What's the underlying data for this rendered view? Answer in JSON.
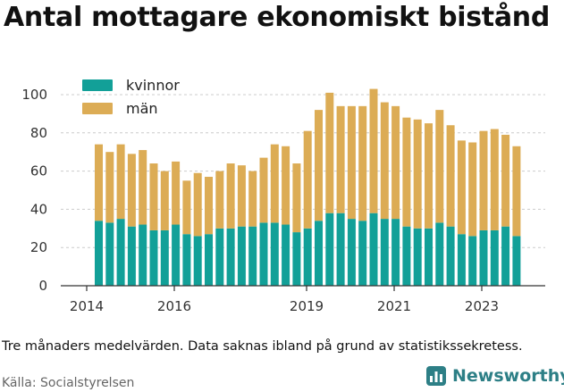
{
  "title": "Antal mottagare ekonomiskt bistånd",
  "note": "Tre månaders medelvärden. Data saknas ibland på grund av statistikssekretess.",
  "source": "Källa: Socialstyrelsen",
  "brand": "Newsworthy",
  "colors": {
    "kvinnor": "#12a098",
    "man": "#dcac55",
    "brand": "#2d7f86",
    "axis": "#333333",
    "grid": "#cccccc"
  },
  "chart_data": {
    "type": "bar",
    "stacked": true,
    "x_start": "2014-04",
    "x_step_months": 3,
    "x_tick_labels": [
      "2014",
      "2016",
      "2019",
      "2021",
      "2023"
    ],
    "y_tick_labels": [
      "0",
      "20",
      "40",
      "60",
      "80",
      "100"
    ],
    "ylim": [
      0,
      105
    ],
    "legend_position": "top-left",
    "grid": "horizontal",
    "series": [
      {
        "name": "kvinnor",
        "values": [
          34,
          33,
          35,
          31,
          32,
          29,
          29,
          32,
          27,
          26,
          27,
          30,
          30,
          31,
          31,
          33,
          33,
          32,
          28,
          30,
          34,
          38,
          38,
          35,
          34,
          38,
          35,
          35,
          31,
          30,
          30,
          33,
          31,
          27,
          26,
          29,
          29,
          31,
          26
        ]
      },
      {
        "name": "män",
        "values": [
          40,
          37,
          39,
          38,
          39,
          35,
          31,
          33,
          28,
          33,
          30,
          30,
          34,
          32,
          29,
          34,
          41,
          41,
          36,
          51,
          58,
          63,
          56,
          59,
          60,
          65,
          61,
          59,
          57,
          57,
          55,
          59,
          53,
          49,
          49,
          52,
          53,
          48,
          47
        ]
      }
    ]
  }
}
